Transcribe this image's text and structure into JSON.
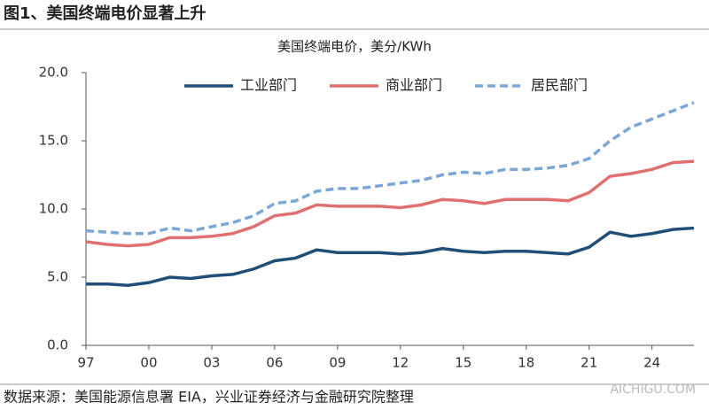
{
  "figure_title": "图1、美国终端电价显著上升",
  "source": "数据来源：美国能源信息署 EIA，兴业证券经济与金融研究院整理",
  "watermark": "AICHIGU.COM",
  "chart_data": {
    "type": "line",
    "title": "美国终端电价，美分/KWh",
    "x": [
      1997,
      1998,
      1999,
      2000,
      2001,
      2002,
      2003,
      2004,
      2005,
      2006,
      2007,
      2008,
      2009,
      2010,
      2011,
      2012,
      2013,
      2014,
      2015,
      2016,
      2017,
      2018,
      2019,
      2020,
      2021,
      2022,
      2023,
      2024,
      2025,
      2026
    ],
    "series": [
      {
        "name": "工业部门",
        "color": "#1f4e79",
        "style": "solid",
        "values": [
          4.5,
          4.5,
          4.4,
          4.6,
          5.0,
          4.9,
          5.1,
          5.2,
          5.6,
          6.2,
          6.4,
          7.0,
          6.8,
          6.8,
          6.8,
          6.7,
          6.8,
          7.1,
          6.9,
          6.8,
          6.9,
          6.9,
          6.8,
          6.7,
          7.2,
          8.3,
          8.0,
          8.2,
          8.5,
          8.6
        ]
      },
      {
        "name": "商业部门",
        "color": "#e07070",
        "style": "solid",
        "values": [
          7.6,
          7.4,
          7.3,
          7.4,
          7.9,
          7.9,
          8.0,
          8.2,
          8.7,
          9.5,
          9.7,
          10.3,
          10.2,
          10.2,
          10.2,
          10.1,
          10.3,
          10.7,
          10.6,
          10.4,
          10.7,
          10.7,
          10.7,
          10.6,
          11.2,
          12.4,
          12.6,
          12.9,
          13.4,
          13.5
        ]
      },
      {
        "name": "居民部门",
        "color": "#7ba7d7",
        "style": "dashed",
        "values": [
          8.4,
          8.3,
          8.2,
          8.2,
          8.6,
          8.4,
          8.7,
          9.0,
          9.5,
          10.4,
          10.6,
          11.3,
          11.5,
          11.5,
          11.7,
          11.9,
          12.1,
          12.5,
          12.7,
          12.6,
          12.9,
          12.9,
          13.0,
          13.2,
          13.7,
          15.0,
          16.0,
          16.6,
          17.2,
          17.8
        ]
      }
    ],
    "xlim": [
      1997,
      2026
    ],
    "xticks": [
      {
        "value": 1997,
        "label": "97"
      },
      {
        "value": 2000,
        "label": "00"
      },
      {
        "value": 2003,
        "label": "03"
      },
      {
        "value": 2006,
        "label": "06"
      },
      {
        "value": 2009,
        "label": "09"
      },
      {
        "value": 2012,
        "label": "12"
      },
      {
        "value": 2015,
        "label": "15"
      },
      {
        "value": 2018,
        "label": "18"
      },
      {
        "value": 2021,
        "label": "21"
      },
      {
        "value": 2024,
        "label": "24"
      }
    ],
    "ylim": [
      0,
      20
    ],
    "yticks": [
      {
        "value": 0,
        "label": "0.0"
      },
      {
        "value": 5,
        "label": "5.0"
      },
      {
        "value": 10,
        "label": "10.0"
      },
      {
        "value": 15,
        "label": "15.0"
      },
      {
        "value": 20,
        "label": "20.0"
      }
    ],
    "grid": false,
    "legend": "top"
  }
}
